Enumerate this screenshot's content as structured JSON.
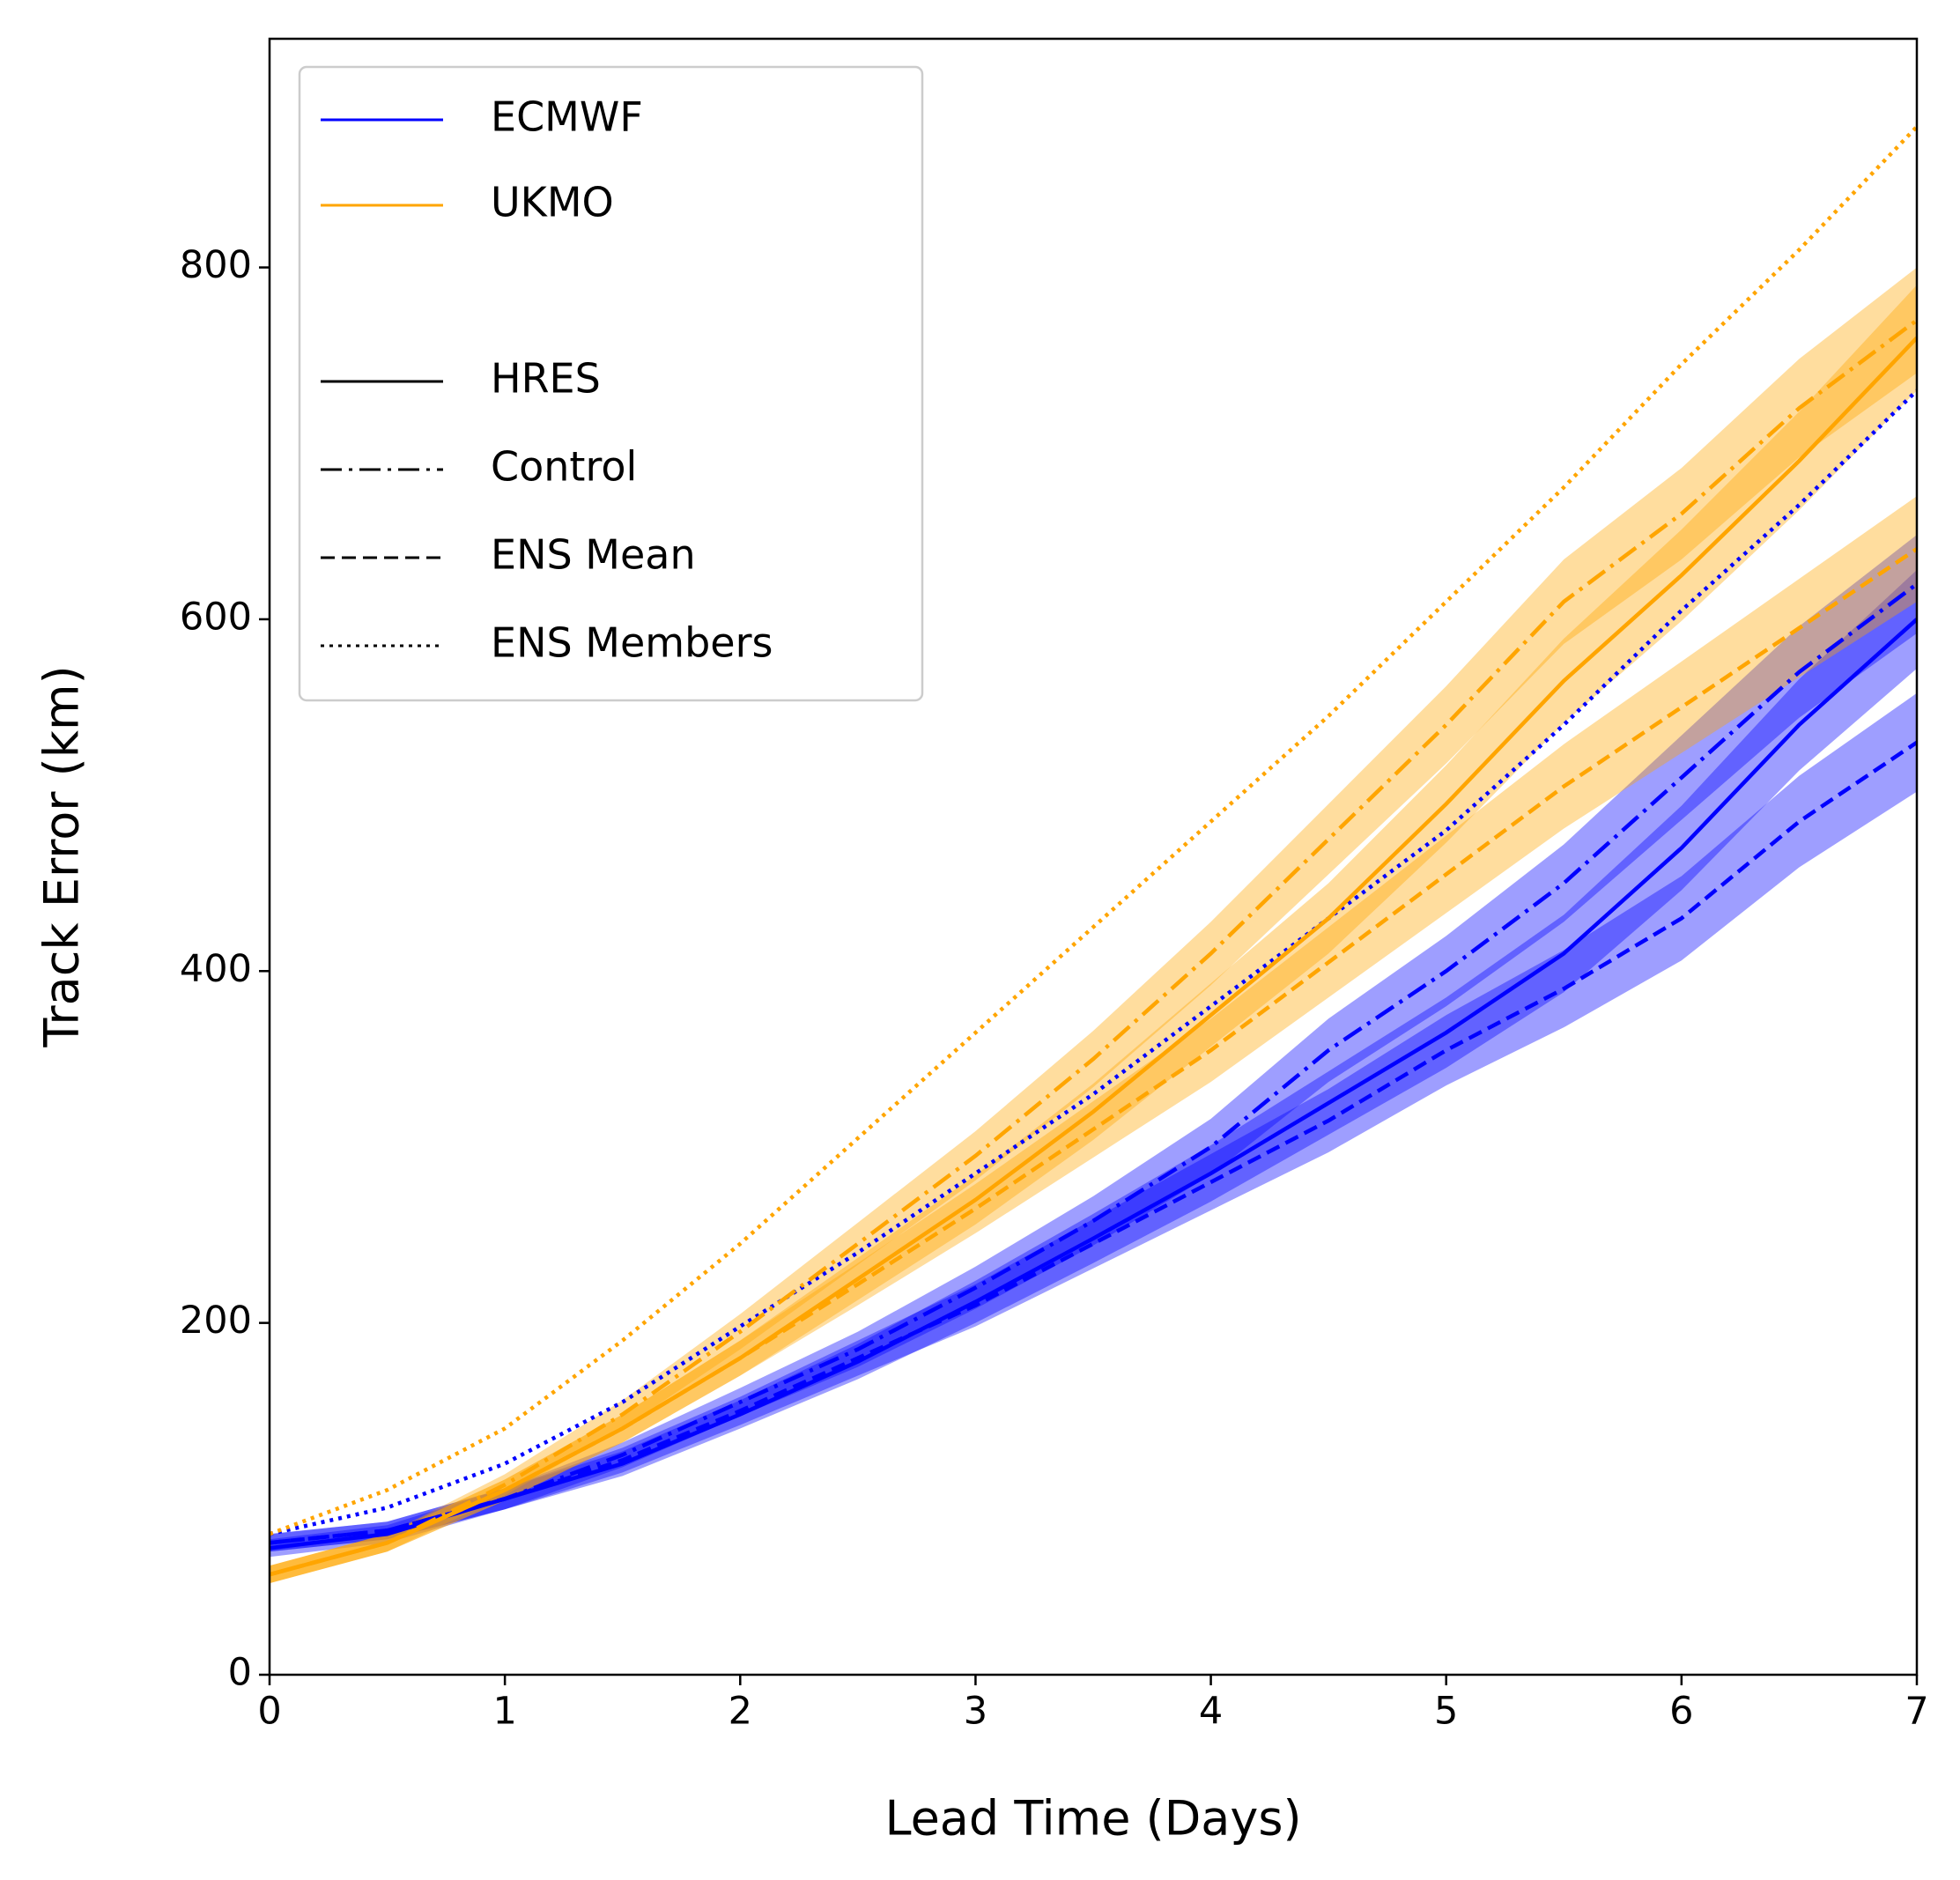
{
  "chart_data": {
    "type": "line",
    "xlabel": "Lead Time (Days)",
    "ylabel": "Track Error (km)",
    "x": [
      0,
      0.5,
      1,
      1.5,
      2,
      2.5,
      3,
      3.5,
      4,
      4.5,
      5,
      5.5,
      6,
      6.5,
      7
    ],
    "xlim": [
      0,
      7
    ],
    "xticks": [
      0,
      1,
      2,
      3,
      4,
      5,
      6,
      7
    ],
    "ylim": [
      0,
      930
    ],
    "yticks": [
      0,
      200,
      400,
      600,
      800
    ],
    "legend_position": "upper left",
    "legend": [
      {
        "label": "ECMWF",
        "color": "#0000ff",
        "style": "solid"
      },
      {
        "label": "UKMO",
        "color": "#ffa500",
        "style": "solid"
      },
      {
        "label": "HRES",
        "color": "#000000",
        "style": "solid"
      },
      {
        "label": "Control",
        "color": "#000000",
        "style": "dashdot"
      },
      {
        "label": "ENS Mean",
        "color": "#000000",
        "style": "dashed"
      },
      {
        "label": "ENS Members",
        "color": "#000000",
        "style": "dotted"
      }
    ],
    "series": [
      {
        "color": "#0000ff",
        "style": "solid",
        "values": [
          72,
          80,
          100,
          120,
          148,
          178,
          212,
          248,
          285,
          325,
          365,
          410,
          470,
          540,
          600
        ],
        "errors": [
          5,
          5,
          6,
          7,
          8,
          10,
          12,
          14,
          16,
          18,
          20,
          22,
          24,
          26,
          28
        ]
      },
      {
        "color": "#0000ff",
        "style": "dashdot",
        "values": [
          75,
          82,
          100,
          125,
          155,
          185,
          220,
          258,
          300,
          355,
          400,
          450,
          510,
          570,
          620
        ],
        "errors": [
          5,
          5,
          6,
          7,
          8,
          10,
          12,
          14,
          16,
          18,
          20,
          22,
          24,
          26,
          28
        ]
      },
      {
        "color": "#0000ff",
        "style": "dashed",
        "values": [
          75,
          82,
          100,
          122,
          150,
          180,
          210,
          245,
          280,
          315,
          355,
          390,
          430,
          485,
          530
        ],
        "errors": [
          5,
          5,
          6,
          7,
          8,
          10,
          12,
          14,
          16,
          18,
          20,
          22,
          24,
          26,
          28
        ]
      },
      {
        "color": "#0000ff",
        "style": "dotted",
        "values": [
          80,
          95,
          120,
          155,
          198,
          240,
          285,
          330,
          380,
          430,
          480,
          540,
          605,
          665,
          730
        ]
      },
      {
        "color": "#ffa500",
        "style": "solid",
        "values": [
          57,
          75,
          105,
          140,
          180,
          225,
          270,
          320,
          375,
          430,
          495,
          565,
          625,
          690,
          760
        ],
        "errors": [
          5,
          5,
          6,
          8,
          10,
          12,
          14,
          16,
          18,
          20,
          22,
          24,
          26,
          28,
          30
        ]
      },
      {
        "color": "#ffa500",
        "style": "dashdot",
        "values": [
          57,
          75,
          108,
          148,
          195,
          245,
          295,
          350,
          410,
          475,
          540,
          610,
          660,
          720,
          770
        ],
        "errors": [
          5,
          5,
          6,
          8,
          10,
          12,
          14,
          16,
          18,
          20,
          22,
          24,
          26,
          28,
          30
        ]
      },
      {
        "color": "#ffa500",
        "style": "dashed",
        "values": [
          57,
          75,
          105,
          140,
          180,
          222,
          265,
          310,
          355,
          405,
          455,
          505,
          550,
          595,
          640
        ],
        "errors": [
          5,
          5,
          6,
          8,
          10,
          12,
          14,
          16,
          18,
          20,
          22,
          24,
          26,
          28,
          30
        ]
      },
      {
        "color": "#ffa500",
        "style": "dotted",
        "values": [
          80,
          105,
          140,
          190,
          245,
          305,
          365,
          425,
          485,
          545,
          610,
          675,
          745,
          810,
          880
        ]
      }
    ]
  }
}
